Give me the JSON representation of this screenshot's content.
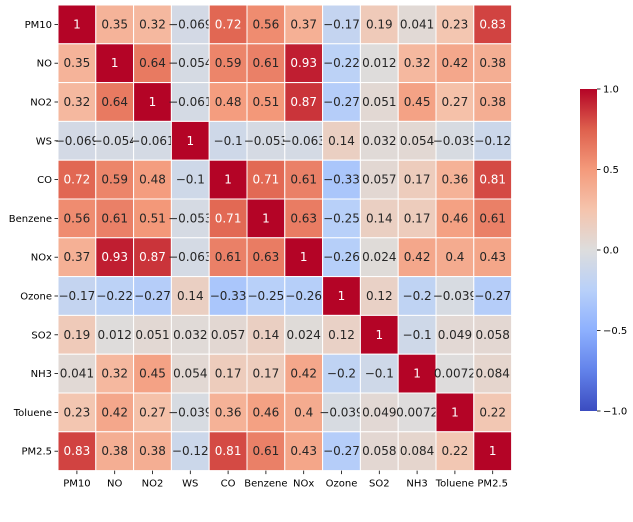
{
  "chart_data": {
    "type": "heatmap",
    "title": "",
    "xlabel": "",
    "ylabel": "",
    "x_categories": [
      "PM10",
      "NO",
      "NO2",
      "WS",
      "CO",
      "Benzene",
      "NOx",
      "Ozone",
      "SO2",
      "NH3",
      "Toluene",
      "PM2.5"
    ],
    "y_categories": [
      "PM10",
      "NO",
      "NO2",
      "WS",
      "CO",
      "Benzene",
      "NOx",
      "Ozone",
      "SO2",
      "NH3",
      "Toluene",
      "PM2.5"
    ],
    "values": [
      [
        1,
        0.35,
        0.32,
        -0.069,
        0.72,
        0.56,
        0.37,
        -0.17,
        0.19,
        0.041,
        0.23,
        0.83
      ],
      [
        0.35,
        1,
        0.64,
        -0.054,
        0.59,
        0.61,
        0.93,
        -0.22,
        0.012,
        0.32,
        0.42,
        0.38
      ],
      [
        0.32,
        0.64,
        1,
        -0.061,
        0.48,
        0.51,
        0.87,
        -0.27,
        0.051,
        0.45,
        0.27,
        0.38
      ],
      [
        -0.069,
        -0.054,
        -0.061,
        1,
        -0.1,
        -0.053,
        -0.063,
        0.14,
        0.032,
        0.054,
        -0.039,
        -0.12
      ],
      [
        0.72,
        0.59,
        0.48,
        -0.1,
        1,
        0.71,
        0.61,
        -0.33,
        0.057,
        0.17,
        0.36,
        0.81
      ],
      [
        0.56,
        0.61,
        0.51,
        -0.053,
        0.71,
        1,
        0.63,
        -0.25,
        0.14,
        0.17,
        0.46,
        0.61
      ],
      [
        0.37,
        0.93,
        0.87,
        -0.063,
        0.61,
        0.63,
        1,
        -0.26,
        0.024,
        0.42,
        0.4,
        0.43
      ],
      [
        -0.17,
        -0.22,
        -0.27,
        0.14,
        -0.33,
        -0.25,
        -0.26,
        1,
        0.12,
        -0.2,
        -0.039,
        -0.27
      ],
      [
        0.19,
        0.012,
        0.051,
        0.032,
        0.057,
        0.14,
        0.024,
        0.12,
        1,
        -0.1,
        0.049,
        0.058
      ],
      [
        0.041,
        0.32,
        0.45,
        0.054,
        0.17,
        0.17,
        0.42,
        -0.2,
        -0.1,
        1,
        0.0072,
        0.084
      ],
      [
        0.23,
        0.42,
        0.27,
        -0.039,
        0.36,
        0.46,
        0.4,
        -0.039,
        0.049,
        0.0072,
        1,
        0.22
      ],
      [
        0.83,
        0.38,
        0.38,
        -0.12,
        0.81,
        0.61,
        0.43,
        -0.27,
        0.058,
        0.084,
        0.22,
        1
      ]
    ],
    "colormap": "coolwarm",
    "vmin": -1,
    "vmax": 1,
    "grid": false,
    "cell_separator_color": "#ffffff",
    "annotations": true,
    "colorbar": {
      "placement": "right",
      "ticks": [
        -1,
        -0.5,
        0,
        0.5,
        1
      ],
      "tick_labels": [
        "−1.0",
        "−0.5",
        "0.0",
        "0.5",
        "1.0"
      ]
    }
  }
}
